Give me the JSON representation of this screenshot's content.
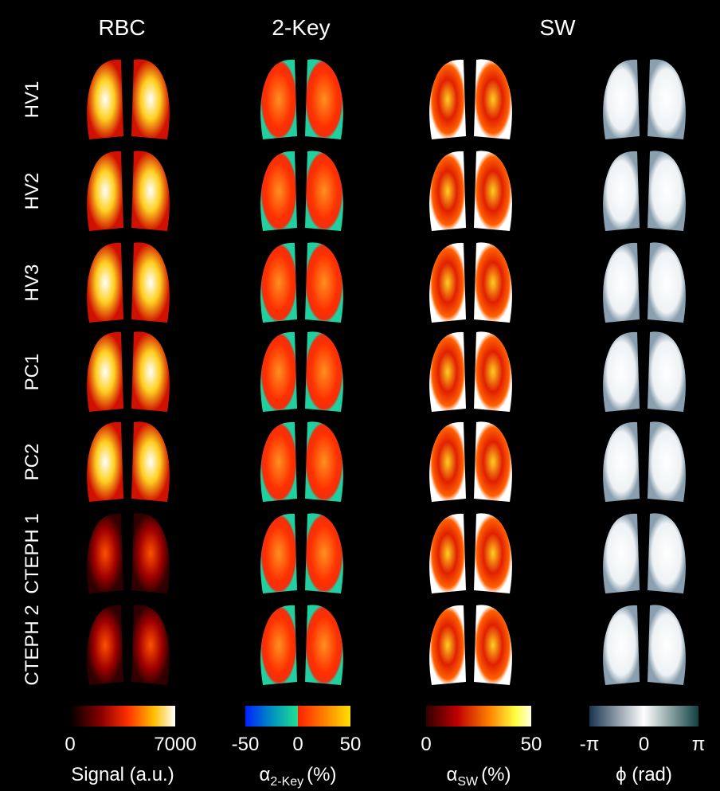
{
  "column_headers": [
    "RBC",
    "2-Key",
    "SW"
  ],
  "row_labels": [
    "HV1",
    "HV2",
    "HV3",
    "PC1",
    "PC2",
    "CTEPH 1",
    "CTEPH 2"
  ],
  "colorbars": [
    {
      "ticks": [
        "0",
        "7000"
      ],
      "title": {
        "text": "Signal (a.u.)"
      }
    },
    {
      "ticks": [
        "-50",
        "0",
        "50"
      ],
      "title": {
        "symbol": "α",
        "subscript": "2-Key",
        "unit": "(%)"
      }
    },
    {
      "ticks": [
        "0",
        "50"
      ],
      "title": {
        "symbol": "α",
        "subscript": "SW",
        "unit": "(%)"
      }
    },
    {
      "ticks": [
        "-π",
        "0",
        "π"
      ],
      "title": {
        "text": "ϕ (rad)"
      }
    }
  ]
}
